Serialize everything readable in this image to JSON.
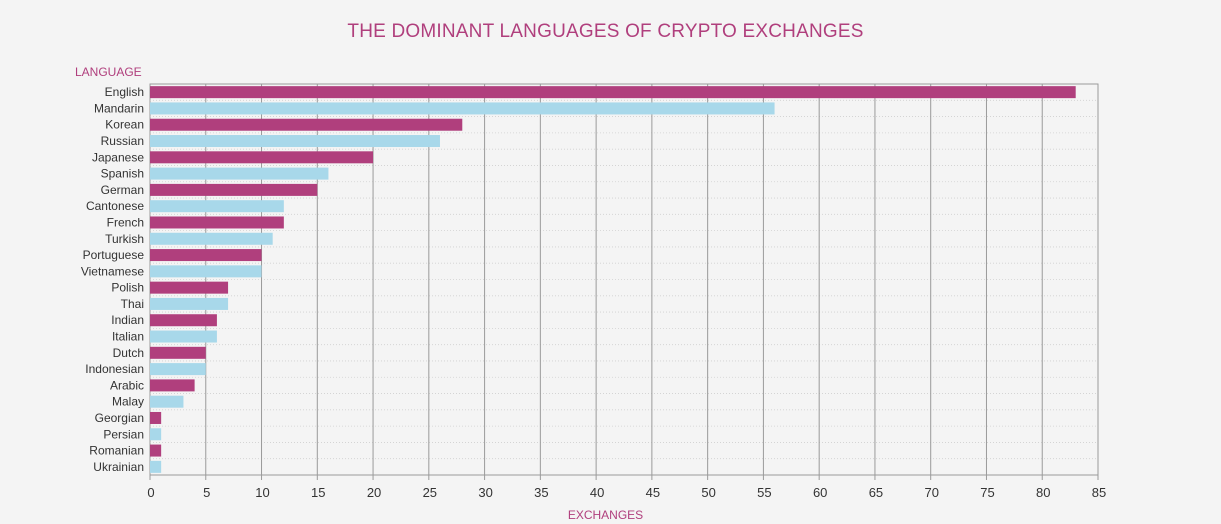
{
  "chart_data": {
    "type": "bar",
    "orientation": "horizontal",
    "title": "THE DOMINANT LANGUAGES OF CRYPTO EXCHANGES",
    "ylabel": "LANGUAGE",
    "xlabel": "EXCHANGES",
    "xlim": [
      0,
      85
    ],
    "x_ticks": [
      0,
      5,
      10,
      15,
      20,
      25,
      30,
      35,
      40,
      45,
      50,
      55,
      60,
      65,
      70,
      75,
      80,
      85
    ],
    "grid": true,
    "categories": [
      "English",
      "Mandarin",
      "Korean",
      "Russian",
      "Japanese",
      "Spanish",
      "German",
      "Cantonese",
      "French",
      "Turkish",
      "Portuguese",
      "Vietnamese",
      "Polish",
      "Thai",
      "Indian",
      "Italian",
      "Dutch",
      "Indonesian",
      "Arabic",
      "Malay",
      "Georgian",
      "Persian",
      "Romanian",
      "Ukrainian"
    ],
    "values": [
      83,
      56,
      28,
      26,
      20,
      16,
      15,
      12,
      12,
      11,
      10,
      10,
      7,
      7,
      6,
      6,
      5,
      5,
      4,
      3,
      1,
      1,
      1,
      1
    ],
    "colors": [
      "#b03f7d",
      "#a8d8ea"
    ]
  }
}
